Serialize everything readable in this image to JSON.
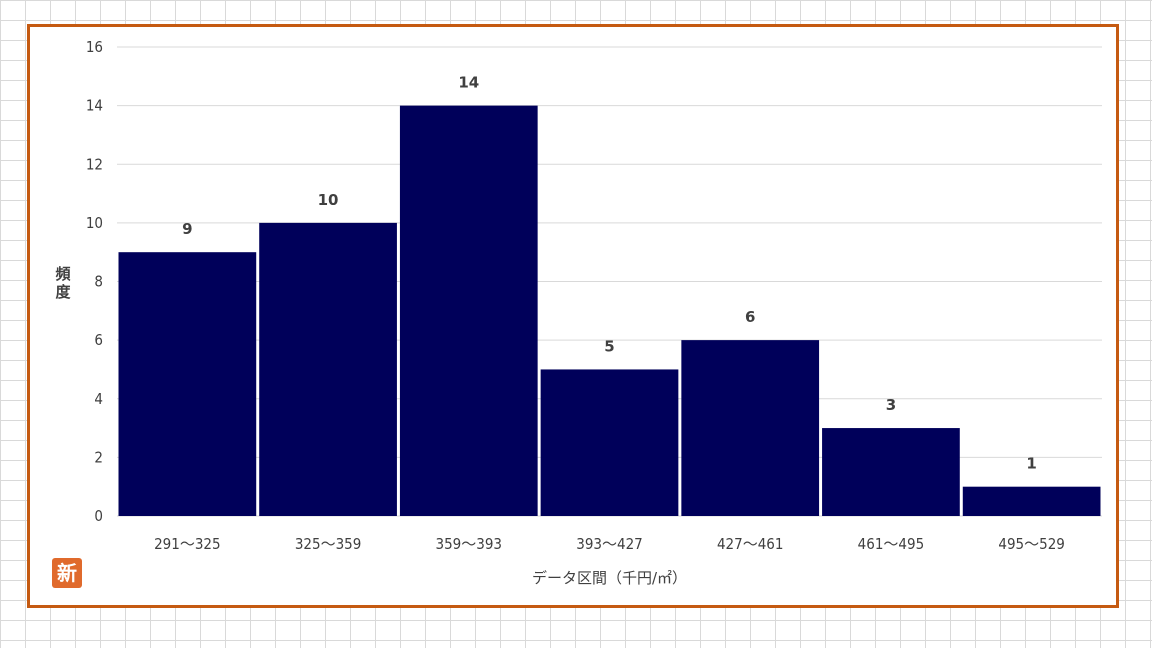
{
  "chart_data": {
    "type": "bar",
    "categories": [
      "291～325",
      "325～359",
      "359～393",
      "393～427",
      "427～461",
      "461～495",
      "495～529"
    ],
    "values": [
      9,
      10,
      14,
      5,
      6,
      3,
      1
    ],
    "title": "",
    "xlabel": "データ区間（千円/㎡）",
    "ylabel": "頻度",
    "ylim": [
      0,
      16
    ],
    "yticks": [
      0,
      2,
      4,
      6,
      8,
      10,
      12,
      14,
      16
    ],
    "grid": true,
    "legend": "none",
    "colors": {
      "bar": "#00005a",
      "frame": "#c55a11",
      "grid": "#d9d9d9",
      "text": "#404040"
    }
  },
  "badge": {
    "text": "新"
  }
}
